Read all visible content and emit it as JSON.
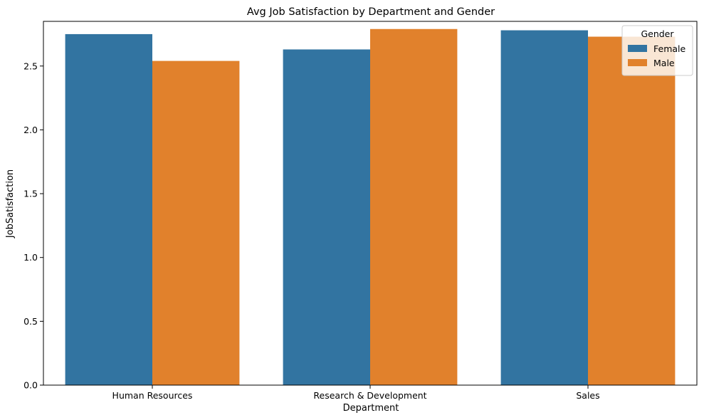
{
  "chart_data": {
    "type": "bar",
    "title": "Avg Job Satisfaction by Department and Gender",
    "xlabel": "Department",
    "ylabel": "JobSatisfaction",
    "categories": [
      "Human Resources",
      "Research & Development",
      "Sales"
    ],
    "series": [
      {
        "name": "Female",
        "values": [
          2.75,
          2.63,
          2.78
        ],
        "color": "#3274a1"
      },
      {
        "name": "Male",
        "values": [
          2.54,
          2.79,
          2.73
        ],
        "color": "#e1812c"
      }
    ],
    "ylim": [
      0,
      2.85
    ],
    "yticks": [
      0.0,
      0.5,
      1.0,
      1.5,
      2.0,
      2.5
    ],
    "ytick_labels": [
      "0.0",
      "0.5",
      "1.0",
      "1.5",
      "2.0",
      "2.5"
    ],
    "grid": false,
    "legend": {
      "title": "Gender",
      "position": "top-right"
    }
  }
}
